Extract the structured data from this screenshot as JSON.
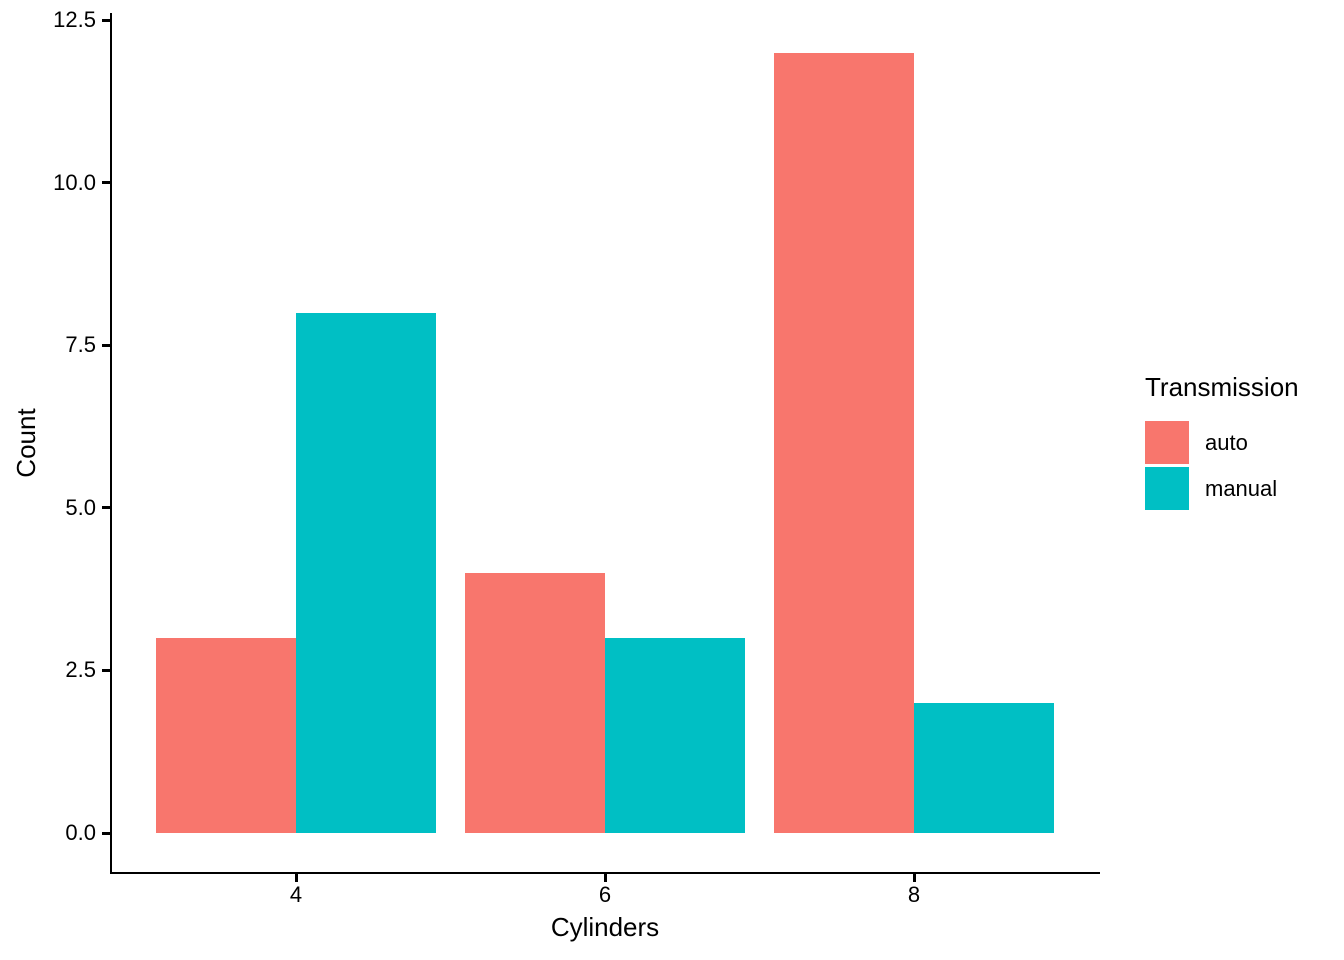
{
  "chart_data": {
    "type": "bar",
    "grouping": "dodged",
    "title": "",
    "xlabel": "Cylinders",
    "ylabel": "Count",
    "categories": [
      "4",
      "6",
      "8"
    ],
    "series": [
      {
        "name": "auto",
        "color": "#F8766D",
        "values": [
          3,
          4,
          12
        ]
      },
      {
        "name": "manual",
        "color": "#00BFC4",
        "values": [
          8,
          3,
          2
        ]
      }
    ],
    "yticks": [
      {
        "label": "0.0",
        "value": 0
      },
      {
        "label": "2.5",
        "value": 2.5
      },
      {
        "label": "5.0",
        "value": 5
      },
      {
        "label": "7.5",
        "value": 7.5
      },
      {
        "label": "10.0",
        "value": 10
      },
      {
        "label": "12.5",
        "value": 12.5
      }
    ],
    "ylim": [
      0,
      12.5
    ],
    "grid": false,
    "background": "#ffffff",
    "axis_color": "#000000",
    "legend": {
      "title": "Transmission",
      "position": "right",
      "entries": [
        "auto",
        "manual"
      ]
    }
  }
}
